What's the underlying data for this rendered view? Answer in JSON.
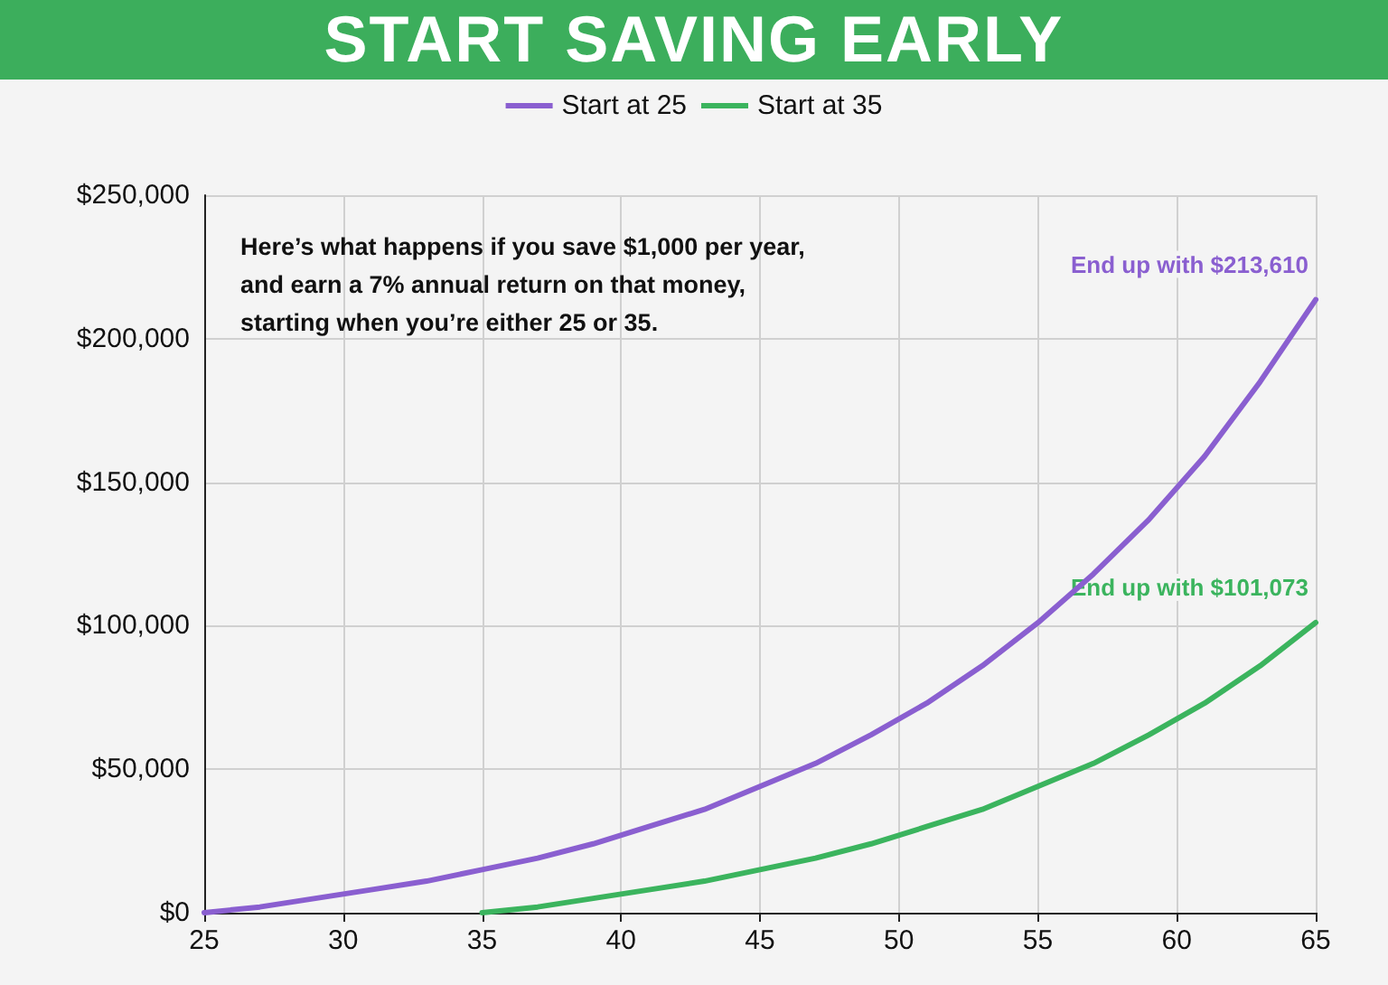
{
  "chart_data": {
    "type": "line",
    "title": "START SAVING EARLY",
    "x": [
      25,
      27,
      29,
      31,
      33,
      35,
      37,
      39,
      41,
      43,
      45,
      47,
      49,
      51,
      53,
      55,
      57,
      59,
      61,
      63,
      65
    ],
    "series": [
      {
        "name": "Start at 25",
        "color": "#8a5fd0",
        "values": [
          0,
          2000,
          5000,
          8000,
          11000,
          15000,
          19000,
          24000,
          30000,
          36000,
          44000,
          52000,
          62000,
          73000,
          86000,
          101000,
          118000,
          137000,
          159000,
          185000,
          213610
        ]
      },
      {
        "name": "Start at 35",
        "color": "#3bb45e",
        "x": [
          35,
          37,
          39,
          41,
          43,
          45,
          47,
          49,
          51,
          53,
          55,
          57,
          59,
          61,
          63,
          65
        ],
        "values": [
          0,
          2000,
          5000,
          8000,
          11000,
          15000,
          19000,
          24000,
          30000,
          36000,
          44000,
          52000,
          62000,
          73000,
          86000,
          101073
        ]
      }
    ],
    "xlim": [
      25,
      65
    ],
    "xticks": [
      25,
      30,
      35,
      40,
      45,
      50,
      55,
      60,
      65
    ],
    "ylim": [
      0,
      250000
    ],
    "yticks": [
      {
        "value": 0,
        "label": "$0"
      },
      {
        "value": 50000,
        "label": "$50,000"
      },
      {
        "value": 100000,
        "label": "$100,000"
      },
      {
        "value": 150000,
        "label": "$150,000"
      },
      {
        "value": 200000,
        "label": "$200,000"
      },
      {
        "value": 250000,
        "label": "$250,000"
      }
    ],
    "annotations": [
      "Here’s what happens if you save $1,000 per year,\nand earn a 7% annual return on that money,\nstarting when you’re either 25 or 35.",
      {
        "text": "End up with $213,610",
        "x": 65,
        "y": 213610
      },
      {
        "text": "End up with $101,073",
        "x": 65,
        "y": 101073
      }
    ],
    "grid": true,
    "legend": "top",
    "marker": "none",
    "line_style": "solid"
  }
}
